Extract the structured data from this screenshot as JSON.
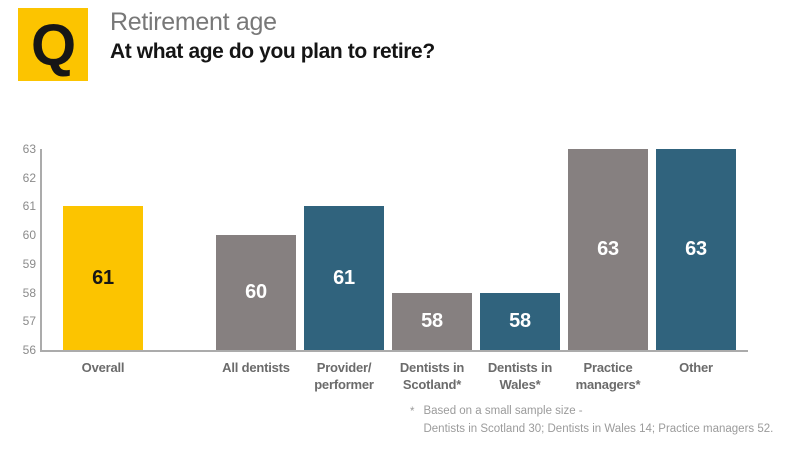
{
  "header": {
    "logo_letter": "Q",
    "title": "Retirement age",
    "question": "At what age do you plan to retire?"
  },
  "colors": {
    "yellow": "#FCC400",
    "gray": "#868080",
    "teal": "#30637D",
    "axis": "#ABABAB",
    "tick_label": "#8B8B8B",
    "x_label": "#6B6B6B",
    "value_on_yellow": "#161616",
    "value_on_dark": "#FFFFFF"
  },
  "chart_data": {
    "type": "bar",
    "title": "Retirement age",
    "subtitle": "At what age do you plan to retire?",
    "xlabel": "",
    "ylabel": "",
    "ylim": [
      56,
      63
    ],
    "yticks": [
      63,
      62,
      61,
      60,
      59,
      58,
      57,
      56
    ],
    "grid": false,
    "legend": "none",
    "categories": [
      "Overall",
      "All dentists",
      "Provider/performer",
      "Dentists in Scotland*",
      "Dentists in Wales*",
      "Practice managers*",
      "Other"
    ],
    "category_label_lines": [
      [
        "Overall"
      ],
      [
        "All dentists"
      ],
      [
        "Provider/",
        "performer"
      ],
      [
        "Dentists in",
        "Scotland*"
      ],
      [
        "Dentists in",
        "Wales*"
      ],
      [
        "Practice",
        "managers*"
      ],
      [
        "Other"
      ]
    ],
    "values": [
      61,
      60,
      61,
      58,
      58,
      63,
      63
    ],
    "bar_color_keys": [
      "yellow",
      "gray",
      "teal",
      "gray",
      "teal",
      "gray",
      "teal"
    ],
    "value_label_color_keys": [
      "value_on_yellow",
      "value_on_dark",
      "value_on_dark",
      "value_on_dark",
      "value_on_dark",
      "value_on_dark",
      "value_on_dark"
    ]
  },
  "footnote": {
    "marker": "*",
    "line1": "Based on a small sample size -",
    "line2": "Dentists in Scotland 30; Dentists in Wales 14; Practice managers 52."
  }
}
